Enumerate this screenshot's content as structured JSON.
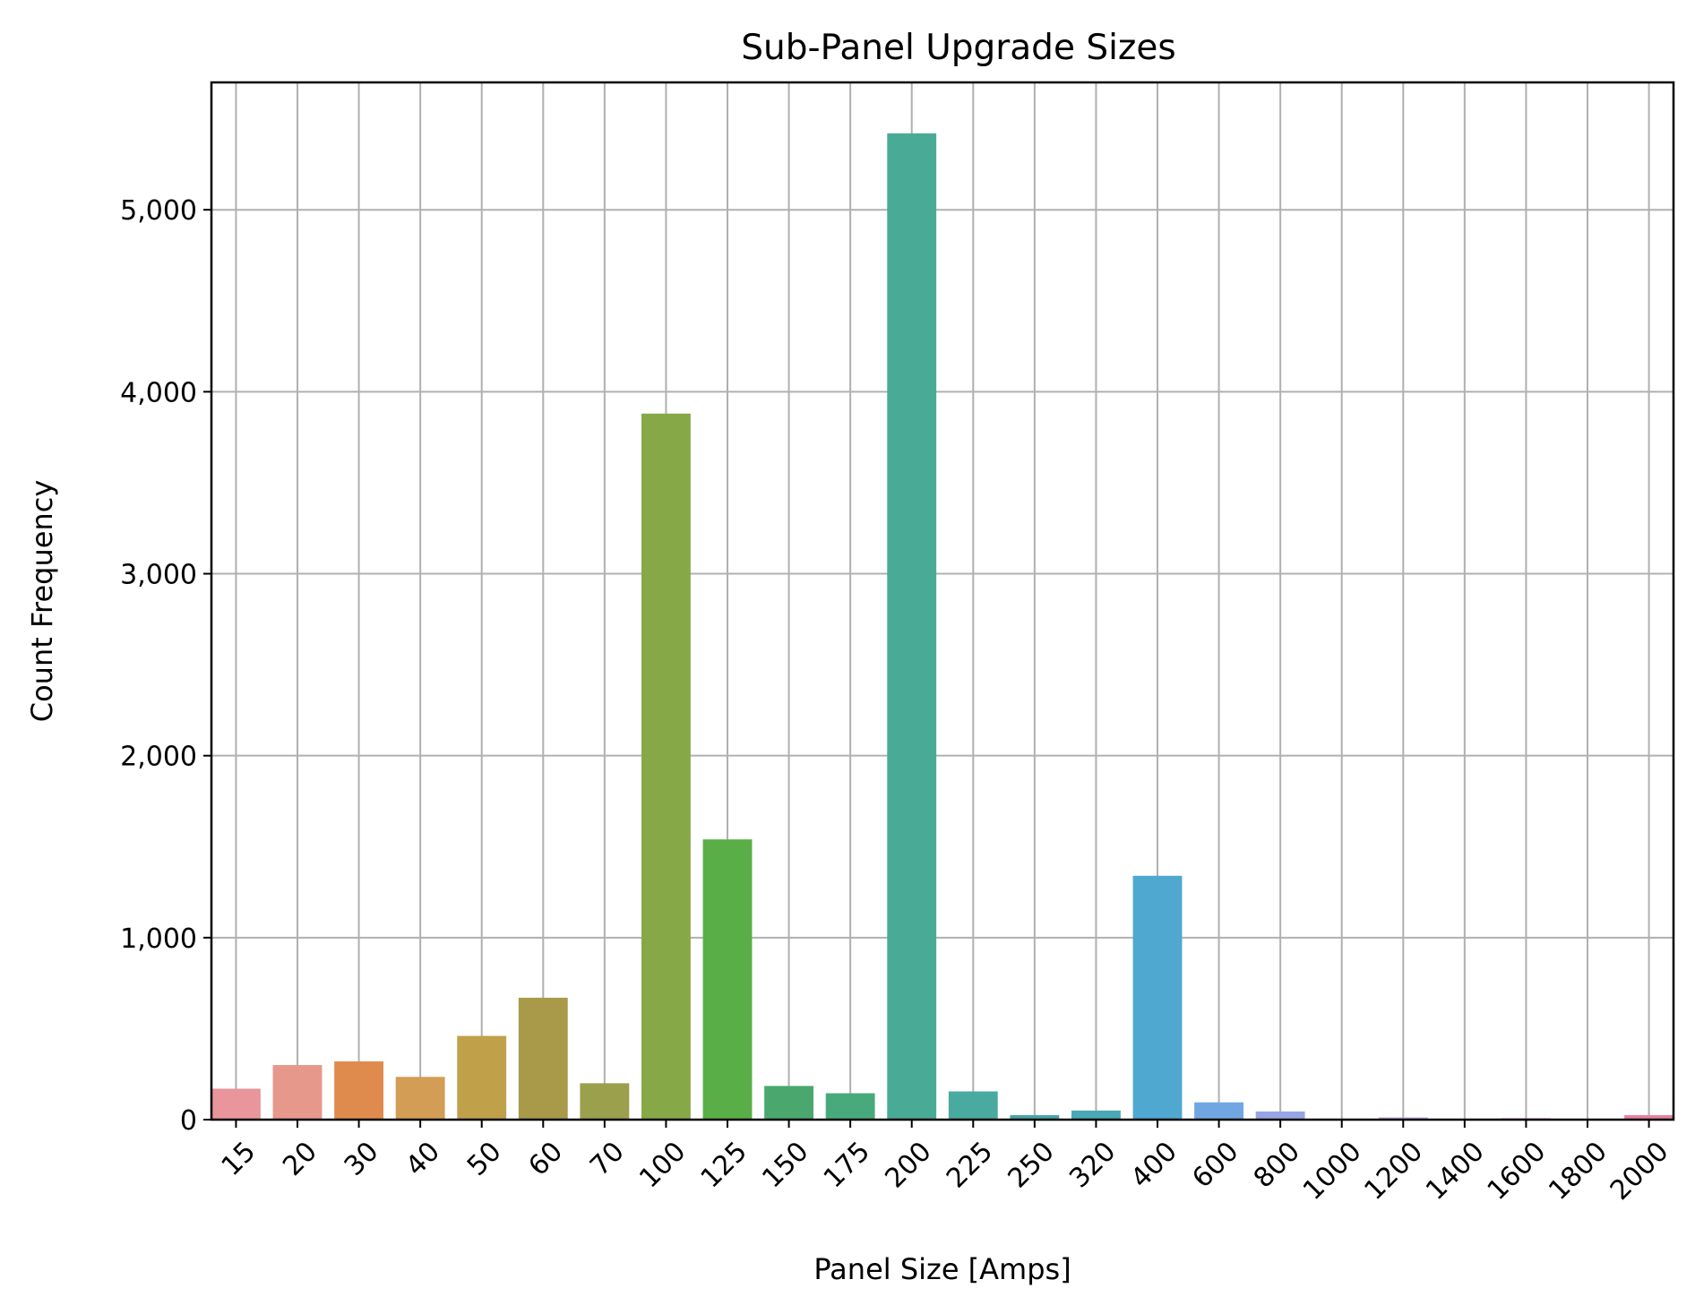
{
  "chart_data": {
    "type": "bar",
    "title": "Sub-Panel Upgrade Sizes",
    "xlabel": "Panel Size [Amps]",
    "ylabel": "Count Frequency",
    "ylim": [
      0,
      5700
    ],
    "yticks": [
      0,
      1000,
      2000,
      3000,
      4000,
      5000
    ],
    "ytick_labels": [
      "0",
      "1,000",
      "2,000",
      "3,000",
      "4,000",
      "5,000"
    ],
    "grid": true,
    "categories": [
      "15",
      "20",
      "30",
      "40",
      "50",
      "60",
      "70",
      "100",
      "125",
      "150",
      "175",
      "200",
      "225",
      "250",
      "320",
      "400",
      "600",
      "800",
      "1000",
      "1200",
      "1400",
      "1600",
      "1800",
      "2000"
    ],
    "values": [
      170,
      300,
      320,
      235,
      460,
      670,
      200,
      3880,
      1540,
      185,
      145,
      5420,
      155,
      25,
      50,
      1340,
      95,
      45,
      5,
      12,
      3,
      8,
      3,
      25
    ],
    "colors": [
      "#e8959c",
      "#e6988a",
      "#df8b4e",
      "#d39d55",
      "#c0a14a",
      "#a89a49",
      "#9aa04c",
      "#87a847",
      "#5aae47",
      "#4aa86e",
      "#48aa7c",
      "#49ab95",
      "#49aa9f",
      "#47a6a9",
      "#4aa7b6",
      "#4fa8d0",
      "#70a7e2",
      "#98a5e3",
      "#b09ae6",
      "#c39ae3",
      "#d396e0",
      "#df8fd6",
      "#e489c4",
      "#e681a6"
    ]
  }
}
